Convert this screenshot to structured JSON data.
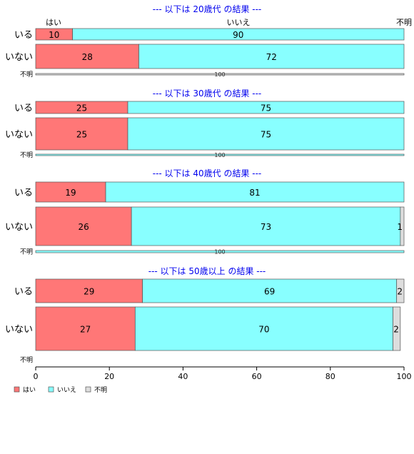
{
  "chart_data": {
    "type": "bar",
    "orientation": "horizontal",
    "stacked": "percent",
    "categories": [
      "はい",
      "いいえ",
      "不明"
    ],
    "colors": [
      "#ff7777",
      "#88ffff",
      "#dddddd"
    ],
    "xlim": [
      0,
      100
    ],
    "xticks": [
      0,
      20,
      40,
      60,
      80,
      100
    ],
    "groups": [
      {
        "title": "--- 以下は 20歳代 の結果 ---",
        "rows": [
          {
            "label": "いる",
            "values": [
              10,
              90,
              0
            ],
            "labels": [
              "10",
              "90",
              ""
            ]
          },
          {
            "label": "いない",
            "values": [
              28,
              72,
              0
            ],
            "labels": [
              "28",
              "72",
              ""
            ]
          },
          {
            "label": "不明",
            "values": [
              0,
              0,
              100
            ],
            "labels": [
              "",
              "",
              "100"
            ]
          }
        ]
      },
      {
        "title": "--- 以下は 30歳代 の結果 ---",
        "rows": [
          {
            "label": "いる",
            "values": [
              25,
              75,
              0
            ],
            "labels": [
              "25",
              "75",
              ""
            ]
          },
          {
            "label": "いない",
            "values": [
              25,
              75,
              0
            ],
            "labels": [
              "25",
              "75",
              ""
            ]
          },
          {
            "label": "不明",
            "values": [
              0,
              100,
              0
            ],
            "labels": [
              "",
              "100",
              ""
            ]
          }
        ]
      },
      {
        "title": "--- 以下は 40歳代 の結果 ---",
        "rows": [
          {
            "label": "いる",
            "values": [
              19,
              81,
              0
            ],
            "labels": [
              "19",
              "81",
              ""
            ]
          },
          {
            "label": "いない",
            "values": [
              26,
              73,
              1
            ],
            "labels": [
              "26",
              "73",
              "1"
            ]
          },
          {
            "label": "不明",
            "values": [
              0,
              100,
              0
            ],
            "labels": [
              "",
              "100",
              ""
            ]
          }
        ]
      },
      {
        "title": "--- 以下は 50歳以上 の結果 ---",
        "rows": [
          {
            "label": "いる",
            "values": [
              29,
              69,
              2
            ],
            "labels": [
              "29",
              "69",
              "2"
            ]
          },
          {
            "label": "いない",
            "values": [
              27,
              70,
              2
            ],
            "labels": [
              "27",
              "70",
              "2"
            ]
          },
          {
            "label": "不明",
            "values": [
              0,
              0,
              0
            ],
            "labels": [
              "",
              "",
              ""
            ]
          }
        ]
      }
    ],
    "legend": {
      "position": "bottom-left",
      "entries": [
        "はい",
        "いいえ",
        "不明"
      ]
    }
  }
}
